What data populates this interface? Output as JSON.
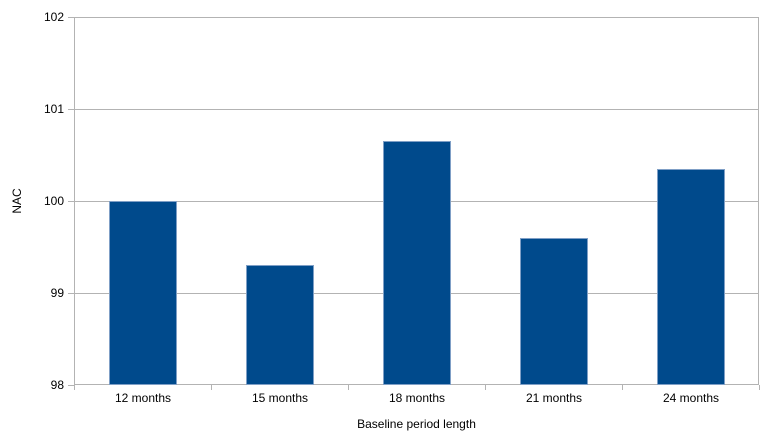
{
  "chart_data": {
    "type": "bar",
    "title": "",
    "categories": [
      "12 months",
      "15 months",
      "18 months",
      "21 months",
      "24 months"
    ],
    "values": [
      100.0,
      99.3,
      100.65,
      99.6,
      100.35
    ],
    "xlabel": "Baseline period length",
    "ylabel": "NAC",
    "ylim": [
      98,
      102
    ],
    "yticks": [
      98,
      99,
      100,
      101,
      102
    ],
    "grid": true,
    "legend": "none",
    "colors": {
      "bar_fill": "#004a8c",
      "bar_edge": "#7f9fc6",
      "grid": "#b3b3b3",
      "axis_text": "#000000",
      "background": "#ffffff"
    }
  }
}
